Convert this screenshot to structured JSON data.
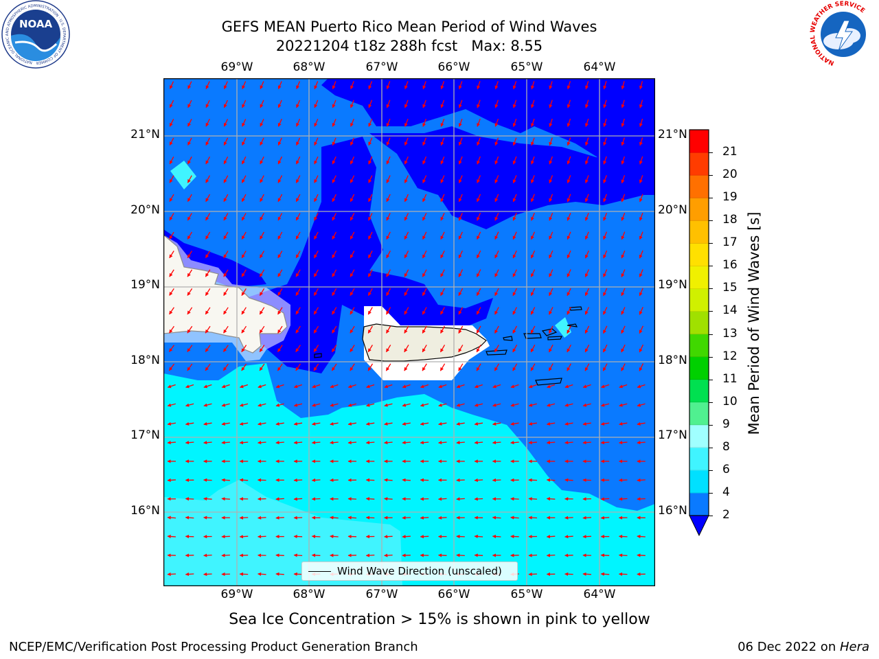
{
  "title": {
    "line1": "GEFS MEAN Puerto Rico Mean Period of Wind Waves",
    "line2": "20221204 t18z 288h fcst   Max: 8.55"
  },
  "map": {
    "lon_labels": [
      "69°W",
      "68°W",
      "67°W",
      "66°W",
      "65°W",
      "64°W"
    ],
    "lat_labels": [
      "21°N",
      "20°N",
      "19°N",
      "18°N",
      "17°N",
      "16°N"
    ],
    "lon_range": [
      -70.0,
      -63.25
    ],
    "lat_range": [
      15.0,
      21.75
    ],
    "legend_label": "Wind Wave Direction (unscaled)",
    "arrow_color": "#ff0000"
  },
  "colorbar": {
    "title": "Mean Period of Wind Waves [s]",
    "ticks": [
      "2",
      "4",
      "6",
      "8",
      "9",
      "10",
      "11",
      "12",
      "13",
      "14",
      "15",
      "16",
      "17",
      "18",
      "19",
      "20",
      "21"
    ],
    "colors": [
      "#0a7aff",
      "#00e0ff",
      "#40f4ff",
      "#a0ffff",
      "#50f090",
      "#00e050",
      "#00d000",
      "#40d800",
      "#a0e000",
      "#d0f000",
      "#f0f000",
      "#ffe000",
      "#ffc000",
      "#ff9e00",
      "#ff7000",
      "#ff3c00",
      "#ff0000"
    ],
    "under_color": "#0000ff"
  },
  "subtitle": "Sea Ice Concentration > 15% is shown in pink to yellow",
  "footer": {
    "left": "NCEP/EMC/Verification Post Processing Product Generation Branch",
    "right_prefix": "06 Dec 2022 on ",
    "right_host": "Hera"
  },
  "logos": {
    "noaa_text": "NOAA",
    "noaa_ring": "NATIONAL OCEANIC AND ATMOSPHERIC ADMINISTRATION · U.S. DEPARTMENT OF COMMERCE",
    "nws_ring": "NATIONAL WEATHER SERVICE"
  }
}
